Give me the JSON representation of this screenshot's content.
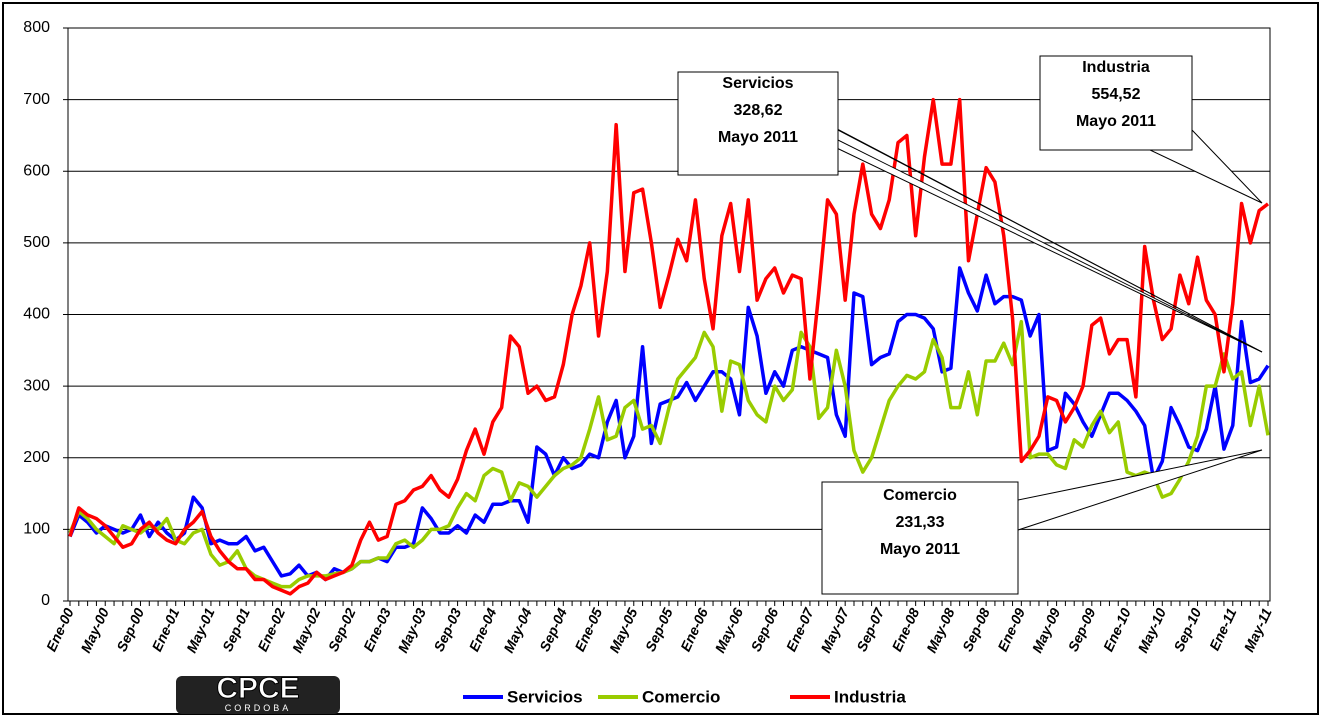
{
  "chart_data": {
    "type": "line",
    "categories": [
      "Ene-00",
      null,
      null,
      null,
      "May-00",
      null,
      null,
      null,
      "Sep-00",
      null,
      null,
      null,
      "Ene-01",
      null,
      null,
      null,
      "May-01",
      null,
      null,
      null,
      "Sep-01",
      null,
      null,
      null,
      "Ene-02",
      null,
      null,
      null,
      "May-02",
      null,
      null,
      null,
      "Sep-02",
      null,
      null,
      null,
      "Ene-03",
      null,
      null,
      null,
      "May-03",
      null,
      null,
      null,
      "Sep-03",
      null,
      null,
      null,
      "Ene-04",
      null,
      null,
      null,
      "May-04",
      null,
      null,
      null,
      "Sep-04",
      null,
      null,
      null,
      "Ene-05",
      null,
      null,
      null,
      "May-05",
      null,
      null,
      null,
      "Sep-05",
      null,
      null,
      null,
      "Ene-06",
      null,
      null,
      null,
      "May-06",
      null,
      null,
      null,
      "Sep-06",
      null,
      null,
      null,
      "Ene-07",
      null,
      null,
      null,
      "May-07",
      null,
      null,
      null,
      "Sep-07",
      null,
      null,
      null,
      "Ene-08",
      null,
      null,
      null,
      "May-08",
      null,
      null,
      null,
      "Sep-08",
      null,
      null,
      null,
      "Ene-09",
      null,
      null,
      null,
      "May-09",
      null,
      null,
      null,
      "Sep-09",
      null,
      null,
      null,
      "Ene-10",
      null,
      null,
      null,
      "May-10",
      null,
      null,
      null,
      "Sep-10",
      null,
      null,
      null,
      "Ene-11",
      null,
      null,
      null,
      "May-11"
    ],
    "series": [
      {
        "name": "Servicios",
        "color": "#0000ff",
        "values": [
          90,
          120,
          110,
          95,
          105,
          100,
          95,
          100,
          120,
          90,
          110,
          95,
          85,
          95,
          145,
          130,
          80,
          85,
          80,
          80,
          90,
          70,
          75,
          55,
          35,
          38,
          50,
          35,
          40,
          30,
          45,
          40,
          45,
          55,
          55,
          60,
          55,
          75,
          75,
          80,
          130,
          115,
          95,
          95,
          105,
          95,
          120,
          110,
          135,
          135,
          140,
          140,
          110,
          215,
          205,
          175,
          200,
          185,
          190,
          205,
          200,
          250,
          280,
          200,
          230,
          355,
          220,
          275,
          280,
          285,
          305,
          280,
          300,
          320,
          320,
          310,
          260,
          410,
          370,
          290,
          320,
          300,
          350,
          355,
          350,
          345,
          340,
          260,
          230,
          430,
          425,
          330,
          340,
          345,
          390,
          400,
          400,
          395,
          380,
          320,
          325,
          465,
          430,
          405,
          455,
          415,
          425,
          425,
          420,
          370,
          400,
          210,
          215,
          290,
          275,
          250,
          230,
          260,
          290,
          290,
          280,
          265,
          245,
          170,
          195,
          270,
          245,
          215,
          210,
          240,
          300,
          212,
          245,
          390,
          305,
          310,
          328.62
        ]
      },
      {
        "name": "Comercio",
        "color": "#99cc00",
        "values": [
          95,
          125,
          115,
          100,
          90,
          80,
          105,
          100,
          95,
          105,
          100,
          115,
          85,
          80,
          95,
          100,
          65,
          50,
          55,
          70,
          45,
          35,
          30,
          25,
          20,
          20,
          30,
          35,
          35,
          35,
          38,
          40,
          45,
          55,
          55,
          60,
          60,
          80,
          85,
          75,
          85,
          100,
          100,
          105,
          130,
          150,
          140,
          175,
          185,
          180,
          140,
          165,
          160,
          145,
          160,
          175,
          185,
          190,
          200,
          240,
          285,
          225,
          230,
          270,
          280,
          240,
          245,
          220,
          270,
          310,
          325,
          340,
          375,
          355,
          265,
          335,
          330,
          280,
          260,
          250,
          300,
          280,
          295,
          375,
          355,
          255,
          270,
          350,
          300,
          210,
          180,
          200,
          240,
          280,
          300,
          315,
          310,
          320,
          365,
          340,
          270,
          270,
          320,
          260,
          335,
          335,
          360,
          330,
          390,
          200,
          205,
          205,
          190,
          185,
          225,
          215,
          245,
          265,
          235,
          250,
          180,
          175,
          180,
          175,
          145,
          150,
          170,
          195,
          230,
          300,
          300,
          345,
          310,
          320,
          245,
          300,
          231.33
        ]
      },
      {
        "name": "Industria",
        "color": "#ff0000",
        "values": [
          90,
          130,
          120,
          115,
          105,
          90,
          75,
          80,
          100,
          110,
          95,
          85,
          80,
          100,
          110,
          125,
          90,
          70,
          55,
          45,
          45,
          30,
          30,
          20,
          15,
          10,
          20,
          25,
          40,
          30,
          35,
          40,
          50,
          85,
          110,
          85,
          90,
          135,
          140,
          155,
          160,
          175,
          155,
          145,
          170,
          210,
          240,
          205,
          250,
          270,
          370,
          355,
          290,
          300,
          280,
          285,
          330,
          400,
          440,
          500,
          370,
          460,
          665,
          460,
          570,
          575,
          500,
          410,
          455,
          505,
          475,
          560,
          450,
          380,
          510,
          555,
          460,
          560,
          420,
          450,
          465,
          430,
          455,
          450,
          310,
          430,
          560,
          540,
          420,
          540,
          610,
          540,
          520,
          560,
          640,
          650,
          510,
          620,
          700,
          610,
          610,
          700,
          475,
          540,
          605,
          585,
          510,
          395,
          195,
          210,
          230,
          285,
          280,
          250,
          270,
          300,
          385,
          395,
          345,
          365,
          365,
          285,
          495,
          420,
          365,
          380,
          455,
          415,
          480,
          420,
          400,
          320,
          415,
          555,
          500,
          545,
          554.52
        ]
      }
    ],
    "ylim": [
      0,
      800
    ],
    "yticks": [
      0,
      100,
      200,
      300,
      400,
      500,
      600,
      700,
      800
    ],
    "grid": true,
    "annotations": [
      {
        "lines": [
          "Servicios",
          "328,62",
          "Mayo 2011"
        ]
      },
      {
        "lines": [
          "Industria",
          "554,52",
          "Mayo 2011"
        ]
      },
      {
        "lines": [
          "Comercio",
          "231,33",
          "Mayo 2011"
        ]
      }
    ],
    "logo": {
      "title": "CPCE",
      "subtitle": "CORDOBA"
    }
  }
}
